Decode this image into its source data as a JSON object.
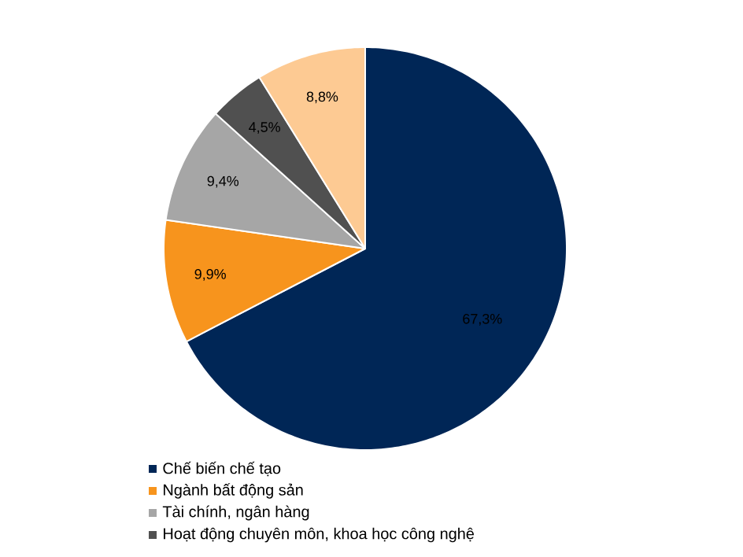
{
  "chart_data": {
    "type": "pie",
    "categories": [
      "Chế biến chế tạo",
      "Ngành bất động sản",
      "Tài chính, ngân hàng",
      "Hoạt động chuyên môn, khoa học công nghệ",
      null
    ],
    "values": [
      67.3,
      9.9,
      9.4,
      4.5,
      8.8
    ],
    "colors": [
      "#002656",
      "#f7941d",
      "#a6a6a6",
      "#505050",
      "#fdca93"
    ],
    "value_labels": [
      "67,3%",
      "9,9%",
      "9,4%",
      "4,5%",
      "8,8%"
    ],
    "legend": "bottom left"
  }
}
